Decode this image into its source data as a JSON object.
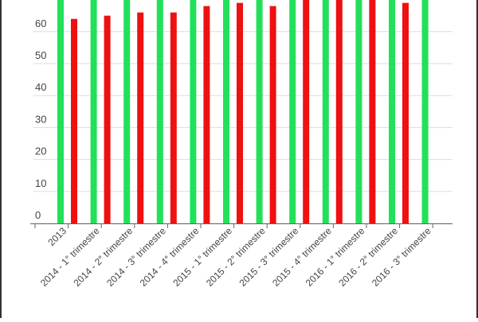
{
  "chart_data": {
    "type": "bar",
    "categories": [
      "2013",
      "2014 - 1° trimestre",
      "2014 - 2° trimestre",
      "2014 - 3° trimestre",
      "2014 - 4° trimestre",
      "2015 - 1° trimestre",
      "2015 - 2° trimestre",
      "2015 - 3° trimestre",
      "2015 - 4° trimestre",
      "2016 - 1° trimestre",
      "2016 - 2° trimestre",
      "2016 - 3° trimestre"
    ],
    "series": [
      {
        "color": "#22e05a",
        "values": [
          75,
          75,
          75,
          75,
          75,
          75,
          75,
          75,
          75,
          75,
          75,
          75
        ]
      },
      {
        "color": "#ee1111",
        "values": [
          64,
          65,
          66,
          66,
          68,
          69,
          68,
          70,
          70,
          70,
          69,
          null
        ]
      }
    ],
    "y_ticks": [
      "0",
      "10",
      "20",
      "30",
      "40",
      "50",
      "60"
    ],
    "ylim": [
      0,
      70
    ],
    "grid": true,
    "legend": "none"
  }
}
